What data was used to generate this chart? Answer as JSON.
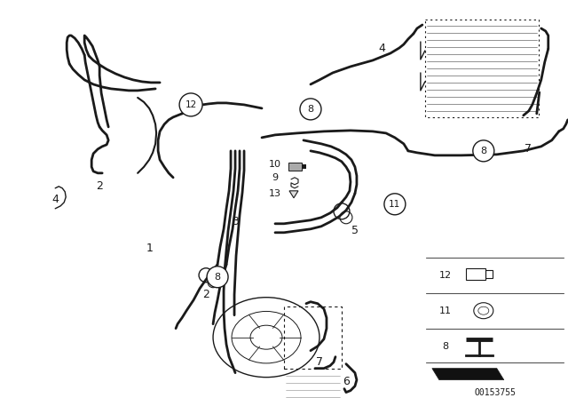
{
  "bg_color": "#ffffff",
  "line_color": "#1a1a1a",
  "part_number": "O0153755",
  "figsize": [
    6.4,
    4.48
  ],
  "dpi": 100,
  "xlim": [
    0,
    640
  ],
  "ylim": [
    0,
    448
  ]
}
